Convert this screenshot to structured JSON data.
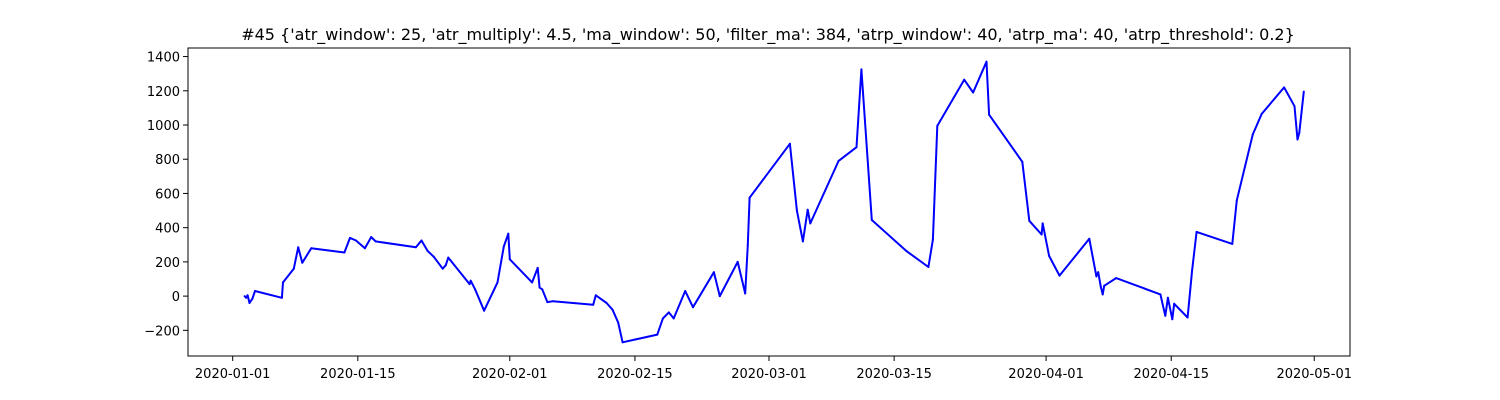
{
  "chart_data": {
    "type": "line",
    "title": "#45 {'atr_window': 25, 'atr_multiply': 4.5, 'ma_window': 50, 'filter_ma': 384, 'atrp_window': 40, 'atrp_ma': 40, 'atrp_threshold': 0.2}",
    "xlabel": "",
    "ylabel": "",
    "xlim": [
      "2019-12-27",
      "2020-05-05"
    ],
    "ylim": [
      -350,
      1450
    ],
    "grid": false,
    "line_color": "#0000ff",
    "x_ticks": [
      {
        "value": "2020-01-01",
        "label": "2020-01-01"
      },
      {
        "value": "2020-01-15",
        "label": "2020-01-15"
      },
      {
        "value": "2020-02-01",
        "label": "2020-02-01"
      },
      {
        "value": "2020-02-15",
        "label": "2020-02-15"
      },
      {
        "value": "2020-03-01",
        "label": "2020-03-01"
      },
      {
        "value": "2020-03-15",
        "label": "2020-03-15"
      },
      {
        "value": "2020-04-01",
        "label": "2020-04-01"
      },
      {
        "value": "2020-04-15",
        "label": "2020-04-15"
      },
      {
        "value": "2020-05-01",
        "label": "2020-05-01"
      }
    ],
    "y_ticks": [
      {
        "value": -200,
        "label": "−200"
      },
      {
        "value": 0,
        "label": "0"
      },
      {
        "value": 200,
        "label": "200"
      },
      {
        "value": 400,
        "label": "400"
      },
      {
        "value": 600,
        "label": "600"
      },
      {
        "value": 800,
        "label": "800"
      },
      {
        "value": 1000,
        "label": "1000"
      },
      {
        "value": 1200,
        "label": "1200"
      },
      {
        "value": 1400,
        "label": "1400"
      }
    ],
    "series": [
      {
        "points": [
          [
            "2020-01-02T08:00",
            0
          ],
          [
            "2020-01-02T12:00",
            -10
          ],
          [
            "2020-01-02T16:00",
            5
          ],
          [
            "2020-01-02T21:00",
            -40
          ],
          [
            "2020-01-03T05:00",
            -15
          ],
          [
            "2020-01-03T12:00",
            30
          ],
          [
            "2020-01-06T12:00",
            -10
          ],
          [
            "2020-01-06T15:00",
            80
          ],
          [
            "2020-01-07T20:00",
            160
          ],
          [
            "2020-01-08T08:00",
            285
          ],
          [
            "2020-01-08T19:00",
            195
          ],
          [
            "2020-01-09T19:00",
            280
          ],
          [
            "2020-01-13T12:00",
            255
          ],
          [
            "2020-01-14T03:00",
            340
          ],
          [
            "2020-01-14T19:00",
            325
          ],
          [
            "2020-01-15T19:00",
            280
          ],
          [
            "2020-01-16T12:00",
            345
          ],
          [
            "2020-01-17T00:00",
            320
          ],
          [
            "2020-01-21T12:00",
            285
          ],
          [
            "2020-01-22T03:00",
            325
          ],
          [
            "2020-01-22T19:00",
            265
          ],
          [
            "2020-01-23T12:00",
            230
          ],
          [
            "2020-01-24T12:00",
            160
          ],
          [
            "2020-01-24T20:00",
            180
          ],
          [
            "2020-01-25T03:00",
            225
          ],
          [
            "2020-01-27T12:00",
            70
          ],
          [
            "2020-01-27T15:00",
            90
          ],
          [
            "2020-01-28T03:00",
            40
          ],
          [
            "2020-01-29T03:00",
            -85
          ],
          [
            "2020-01-30T15:00",
            80
          ],
          [
            "2020-01-31T08:00",
            290
          ],
          [
            "2020-01-31T20:00",
            365
          ],
          [
            "2020-02-01T00:00",
            215
          ],
          [
            "2020-02-03T12:00",
            80
          ],
          [
            "2020-02-04T03:00",
            165
          ],
          [
            "2020-02-04T08:00",
            50
          ],
          [
            "2020-02-04T15:00",
            40
          ],
          [
            "2020-02-05T05:00",
            -35
          ],
          [
            "2020-02-05T20:00",
            -30
          ],
          [
            "2020-02-10T08:00",
            -50
          ],
          [
            "2020-02-10T15:00",
            5
          ],
          [
            "2020-02-11T20:00",
            -40
          ],
          [
            "2020-02-12T12:00",
            -80
          ],
          [
            "2020-02-13T03:00",
            -155
          ],
          [
            "2020-02-13T15:00",
            -270
          ],
          [
            "2020-02-17T12:00",
            -225
          ],
          [
            "2020-02-18T03:00",
            -130
          ],
          [
            "2020-02-18T19:00",
            -95
          ],
          [
            "2020-02-19T08:00",
            -130
          ],
          [
            "2020-02-20T15:00",
            30
          ],
          [
            "2020-02-21T12:00",
            -65
          ],
          [
            "2020-02-23T20:00",
            140
          ],
          [
            "2020-02-24T12:00",
            0
          ],
          [
            "2020-02-26T12:00",
            200
          ],
          [
            "2020-02-27T08:00",
            15
          ],
          [
            "2020-02-27T15:00",
            300
          ],
          [
            "2020-02-27T20:00",
            575
          ],
          [
            "2020-03-03T08:00",
            890
          ],
          [
            "2020-03-04T03:00",
            500
          ],
          [
            "2020-03-04T19:00",
            320
          ],
          [
            "2020-03-05T08:00",
            505
          ],
          [
            "2020-03-05T15:00",
            425
          ],
          [
            "2020-03-08T19:00",
            790
          ],
          [
            "2020-03-10T19:00",
            870
          ],
          [
            "2020-03-11T08:00",
            1325
          ],
          [
            "2020-03-12T12:00",
            445
          ],
          [
            "2020-03-16T08:00",
            265
          ],
          [
            "2020-03-18T20:00",
            170
          ],
          [
            "2020-03-19T08:00",
            330
          ],
          [
            "2020-03-19T20:00",
            995
          ],
          [
            "2020-03-22T20:00",
            1265
          ],
          [
            "2020-03-23T20:00",
            1190
          ],
          [
            "2020-03-25T08:00",
            1370
          ],
          [
            "2020-03-25T15:00",
            1060
          ],
          [
            "2020-03-29T08:00",
            785
          ],
          [
            "2020-03-30T03:00",
            440
          ],
          [
            "2020-03-31T12:00",
            360
          ],
          [
            "2020-03-31T15:00",
            425
          ],
          [
            "2020-04-01T08:00",
            235
          ],
          [
            "2020-04-02T12:00",
            120
          ],
          [
            "2020-04-05T20:00",
            335
          ],
          [
            "2020-04-06T15:00",
            115
          ],
          [
            "2020-04-06T20:00",
            140
          ],
          [
            "2020-04-07T03:00",
            55
          ],
          [
            "2020-04-07T08:00",
            10
          ],
          [
            "2020-04-07T12:00",
            60
          ],
          [
            "2020-04-08T20:00",
            105
          ],
          [
            "2020-04-13T19:00",
            10
          ],
          [
            "2020-04-14T08:00",
            -115
          ],
          [
            "2020-04-14T15:00",
            -10
          ],
          [
            "2020-04-15T03:00",
            -135
          ],
          [
            "2020-04-15T08:00",
            -45
          ],
          [
            "2020-04-16T20:00",
            -125
          ],
          [
            "2020-04-17T08:00",
            150
          ],
          [
            "2020-04-17T20:00",
            375
          ],
          [
            "2020-04-21T20:00",
            305
          ],
          [
            "2020-04-22T08:00",
            560
          ],
          [
            "2020-04-24T03:00",
            945
          ],
          [
            "2020-04-25T03:00",
            1065
          ],
          [
            "2020-04-27T15:00",
            1220
          ],
          [
            "2020-04-28T19:00",
            1110
          ],
          [
            "2020-04-29T03:00",
            915
          ],
          [
            "2020-04-29T08:00",
            955
          ],
          [
            "2020-04-29T20:00",
            1195
          ]
        ]
      }
    ]
  }
}
